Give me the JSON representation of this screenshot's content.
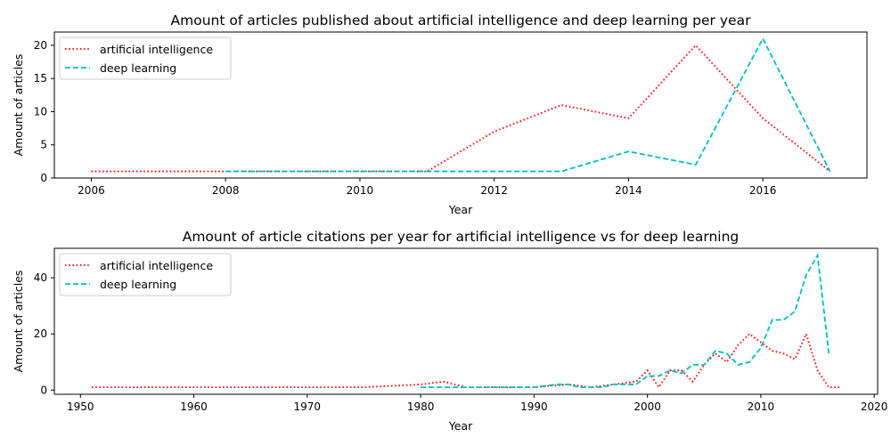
{
  "colors": {
    "artificial_intelligence": "#ff0000",
    "deep_learning": "#00bfbf"
  },
  "chart_data": [
    {
      "type": "line",
      "title": "Amount of articles published about artificial intelligence and deep learning per year",
      "xlabel": "Year",
      "ylabel": "Amount of articles",
      "xlim": [
        2005.45,
        2017.55
      ],
      "ylim": [
        0,
        22
      ],
      "xticks": [
        2006,
        2008,
        2010,
        2012,
        2014,
        2016
      ],
      "yticks": [
        0,
        5,
        10,
        15,
        20
      ],
      "grid": false,
      "legend": "top-left",
      "series": [
        {
          "name": "artificial intelligence",
          "style": "dotted",
          "x": [
            2006,
            2007,
            2008,
            2009,
            2010,
            2011,
            2012,
            2013,
            2014,
            2015,
            2016,
            2017
          ],
          "y": [
            1,
            1,
            1,
            1,
            1,
            1,
            7,
            11,
            9,
            20,
            9,
            1
          ]
        },
        {
          "name": "deep learning",
          "style": "dashed",
          "x": [
            2008,
            2009,
            2010,
            2011,
            2012,
            2013,
            2014,
            2015,
            2016,
            2017
          ],
          "y": [
            1,
            1,
            1,
            1,
            1,
            1,
            4,
            2,
            21,
            1
          ]
        }
      ]
    },
    {
      "type": "line",
      "title": "Amount of article citations per year for artificial intelligence vs for deep learning",
      "xlabel": "Year",
      "ylabel": "Amount of articles",
      "xlim": [
        1947.7,
        2020.3
      ],
      "ylim": [
        -1.5,
        50.5
      ],
      "xticks": [
        1950,
        1960,
        1970,
        1980,
        1990,
        2000,
        2010,
        2020
      ],
      "yticks": [
        0,
        20,
        40
      ],
      "grid": false,
      "legend": "top-left",
      "series": [
        {
          "name": "artificial intelligence",
          "style": "dotted",
          "x": [
            1951,
            1975,
            1980,
            1982,
            1984,
            1990,
            1993,
            1995,
            1997,
            1999,
            2000,
            2001,
            2002,
            2003,
            2004,
            2005,
            2006,
            2007,
            2008,
            2009,
            2010,
            2011,
            2012,
            2013,
            2014,
            2015,
            2016,
            2017
          ],
          "y": [
            1,
            1,
            2,
            3,
            1,
            1,
            2,
            1,
            2,
            3,
            7,
            1,
            7,
            7,
            3,
            9,
            13,
            10,
            16,
            20,
            17,
            14,
            13,
            11,
            20,
            7,
            1,
            1
          ]
        },
        {
          "name": "deep learning",
          "style": "dashed",
          "x": [
            1980,
            1984,
            1990,
            1992,
            1993,
            1994,
            1996,
            1997,
            1999,
            2000,
            2001,
            2002,
            2003,
            2004,
            2005,
            2006,
            2007,
            2008,
            2009,
            2010,
            2011,
            2012,
            2013,
            2014,
            2015,
            2016
          ],
          "y": [
            1,
            1,
            1,
            2,
            2,
            1,
            1,
            2,
            2,
            5,
            5,
            7,
            6,
            9,
            9,
            14,
            13,
            9,
            10,
            15,
            25,
            25,
            28,
            41,
            48,
            13
          ]
        }
      ]
    }
  ]
}
